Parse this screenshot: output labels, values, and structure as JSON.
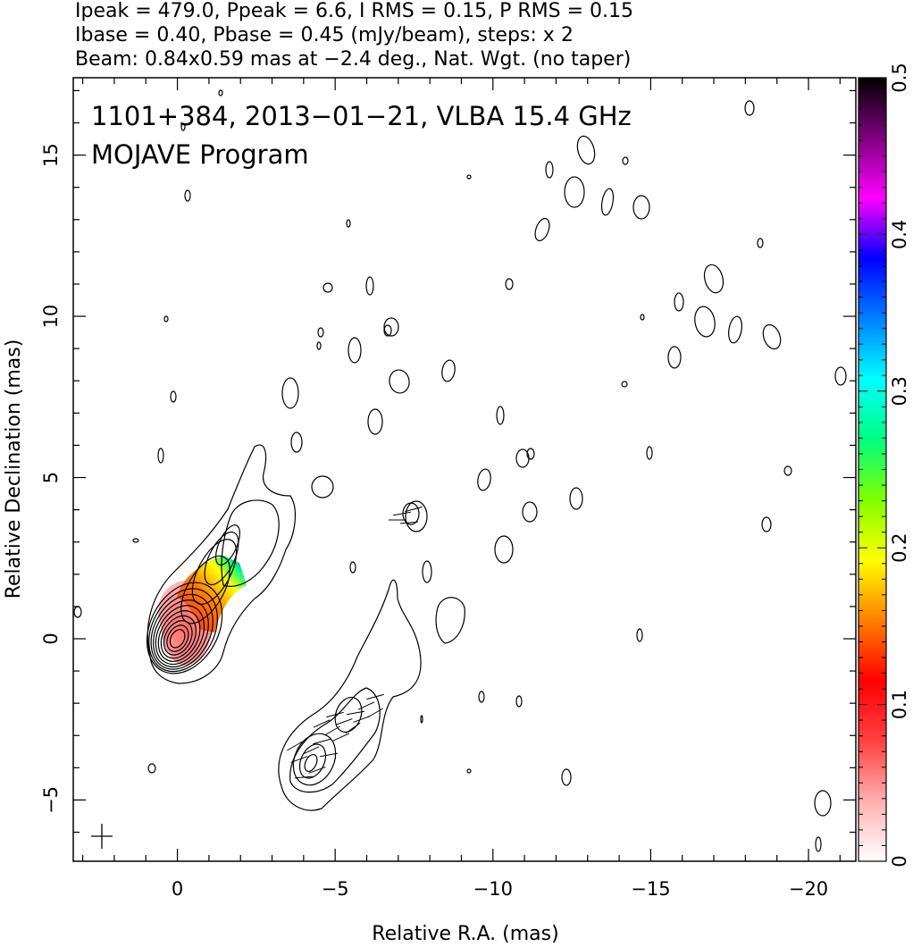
{
  "header": {
    "line1": "Ipeak = 479.0, Ppeak = 6.6, I RMS = 0.15, P RMS = 0.15",
    "line2": "Ibase = 0.40, Pbase = 0.45 (mJy/beam), steps: x 2",
    "line3": "Beam: 0.84x0.59 mas at −2.4 deg., Nat. Wgt. (no taper)"
  },
  "chart_data": {
    "type": "contour",
    "title_line1": "1101+384, 2013−01−21, VLBA 15.4 GHz",
    "title_line2": "MOJAVE Program",
    "xlabel": "Relative R.A. (mas)",
    "ylabel": "Relative Declination (mas)",
    "xlim": [
      3.3,
      -21.5
    ],
    "ylim": [
      -6.9,
      17.4
    ],
    "x_ticks": [
      {
        "v": 0,
        "label": "0"
      },
      {
        "v": -5,
        "label": "−5"
      },
      {
        "v": -10,
        "label": "−10"
      },
      {
        "v": -15,
        "label": "−15"
      },
      {
        "v": -20,
        "label": "−20"
      }
    ],
    "y_ticks": [
      {
        "v": -5,
        "label": "−5"
      },
      {
        "v": 0,
        "label": "0"
      },
      {
        "v": 5,
        "label": "5"
      },
      {
        "v": 10,
        "label": "10"
      },
      {
        "v": 15,
        "label": "15"
      }
    ],
    "grid": false,
    "colorbar": {
      "min": 0,
      "max": 0.5,
      "ticks": [
        {
          "v": 0,
          "label": "0"
        },
        {
          "v": 0.1,
          "label": "0.1"
        },
        {
          "v": 0.2,
          "label": "0.2"
        },
        {
          "v": 0.3,
          "label": "0.3"
        },
        {
          "v": 0.4,
          "label": "0.4"
        },
        {
          "v": 0.5,
          "label": "0.5"
        }
      ],
      "colormap": [
        "#ffffff",
        "#ffb0b0",
        "#ff4040",
        "#ff0000",
        "#ff8000",
        "#ffff00",
        "#80ff00",
        "#00ff80",
        "#00ffff",
        "#0080ff",
        "#0000ff",
        "#ff00ff",
        "#800080",
        "#000000"
      ]
    },
    "core": {
      "x": 0,
      "y": 0,
      "contour_count": 10
    },
    "beam": {
      "major": 0.84,
      "minor": 0.59,
      "pa_deg": -2.4
    }
  }
}
